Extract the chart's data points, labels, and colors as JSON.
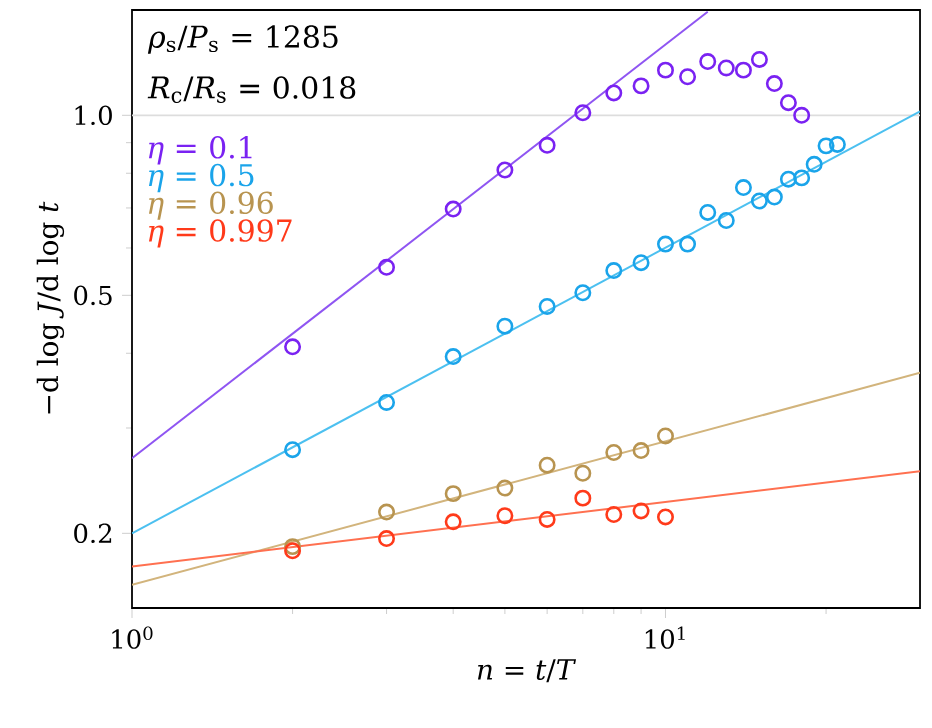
{
  "chart_data": {
    "type": "scatter",
    "xlabel": "*n* = *t*/*T*",
    "ylabel": "−d log *J*/d log *t*",
    "annotations": [
      "*ρ*$_{s}$/*P*$_{s}$ = 1285",
      "*R*$_{c}$/*R*$_{s}$ = 0.018"
    ],
    "log": "xy",
    "xlim": [
      1,
      30
    ],
    "ylim": [
      0.15,
      1.5
    ],
    "xticks": [
      {
        "value": 1,
        "label": "10$^{0}$"
      },
      {
        "value": 2,
        "label": null
      },
      {
        "value": 3,
        "label": null
      },
      {
        "value": 4,
        "label": null
      },
      {
        "value": 5,
        "label": null
      },
      {
        "value": 6,
        "label": null
      },
      {
        "value": 7,
        "label": null
      },
      {
        "value": 8,
        "label": null
      },
      {
        "value": 9,
        "label": null
      },
      {
        "value": 10,
        "label": "10$^{1}$"
      },
      {
        "value": 20,
        "label": null
      }
    ],
    "yticks": [
      0.2,
      {
        "value": 0.3,
        "label": null
      },
      {
        "value": 0.4,
        "label": null
      },
      0.5,
      {
        "value": 0.6,
        "label": null
      },
      {
        "value": 0.7,
        "label": null
      },
      {
        "value": 0.8,
        "label": null
      },
      {
        "value": 0.9,
        "label": null
      },
      {
        "value": 1.0,
        "label": "1.0"
      }
    ],
    "ref_lines": [
      {
        "axis": "y",
        "value": 1.0,
        "label": null,
        "color": "#dddddd"
      }
    ],
    "legend": "top left",
    "marker": "circle",
    "series": [
      {
        "name": "*η* = 0.1",
        "color": "#7a22f2",
        "x": [
          2,
          3,
          4,
          5,
          6,
          7,
          8,
          9,
          10,
          11,
          12,
          13,
          14,
          15,
          16,
          17,
          18
        ],
        "values": [
          0.41,
          0.557,
          0.697,
          0.81,
          0.891,
          1.01,
          1.09,
          1.12,
          1.19,
          1.16,
          1.23,
          1.2,
          1.19,
          1.24,
          1.13,
          1.05,
          1.0
        ]
      },
      {
        "name": "*η* = 0.5",
        "color": "#1aa4ea",
        "x": [
          2,
          3,
          4,
          5,
          6,
          7,
          8,
          9,
          10,
          11,
          12,
          13,
          14,
          15,
          16,
          17,
          18,
          19,
          20,
          21
        ],
        "values": [
          0.276,
          0.331,
          0.395,
          0.444,
          0.479,
          0.505,
          0.55,
          0.567,
          0.609,
          0.609,
          0.688,
          0.667,
          0.757,
          0.719,
          0.73,
          0.782,
          0.786,
          0.828,
          0.889,
          0.894
        ]
      },
      {
        "name": "*η* = 0.96",
        "color": "#b89450",
        "x": [
          2,
          3,
          4,
          5,
          6,
          7,
          8,
          9,
          10
        ],
        "values": [
          0.19,
          0.217,
          0.233,
          0.238,
          0.26,
          0.252,
          0.273,
          0.275,
          0.291
        ]
      },
      {
        "name": "*η* = 0.997",
        "color": "#ff3a1a",
        "x": [
          2,
          3,
          4,
          5,
          6,
          7,
          8,
          9,
          10
        ],
        "values": [
          0.187,
          0.196,
          0.209,
          0.214,
          0.211,
          0.229,
          0.215,
          0.218,
          0.213
        ]
      },
      {
        "type": "line",
        "marker": "none",
        "line_style": "solid",
        "color": "#8f55f2",
        "x": [
          1,
          12
        ],
        "values": [
          0.267,
          1.49
        ]
      },
      {
        "type": "line",
        "marker": "none",
        "line_style": "solid",
        "color": "#4cc0f0",
        "x": [
          1,
          30
        ],
        "values": [
          0.2,
          1.015
        ]
      },
      {
        "type": "line",
        "marker": "none",
        "line_style": "solid",
        "color": "#d2b47c",
        "x": [
          1,
          30
        ],
        "values": [
          0.164,
          0.371
        ]
      },
      {
        "type": "line",
        "marker": "none",
        "line_style": "solid",
        "color": "#ff7050",
        "x": [
          1,
          30
        ],
        "values": [
          0.176,
          0.254
        ]
      }
    ]
  }
}
